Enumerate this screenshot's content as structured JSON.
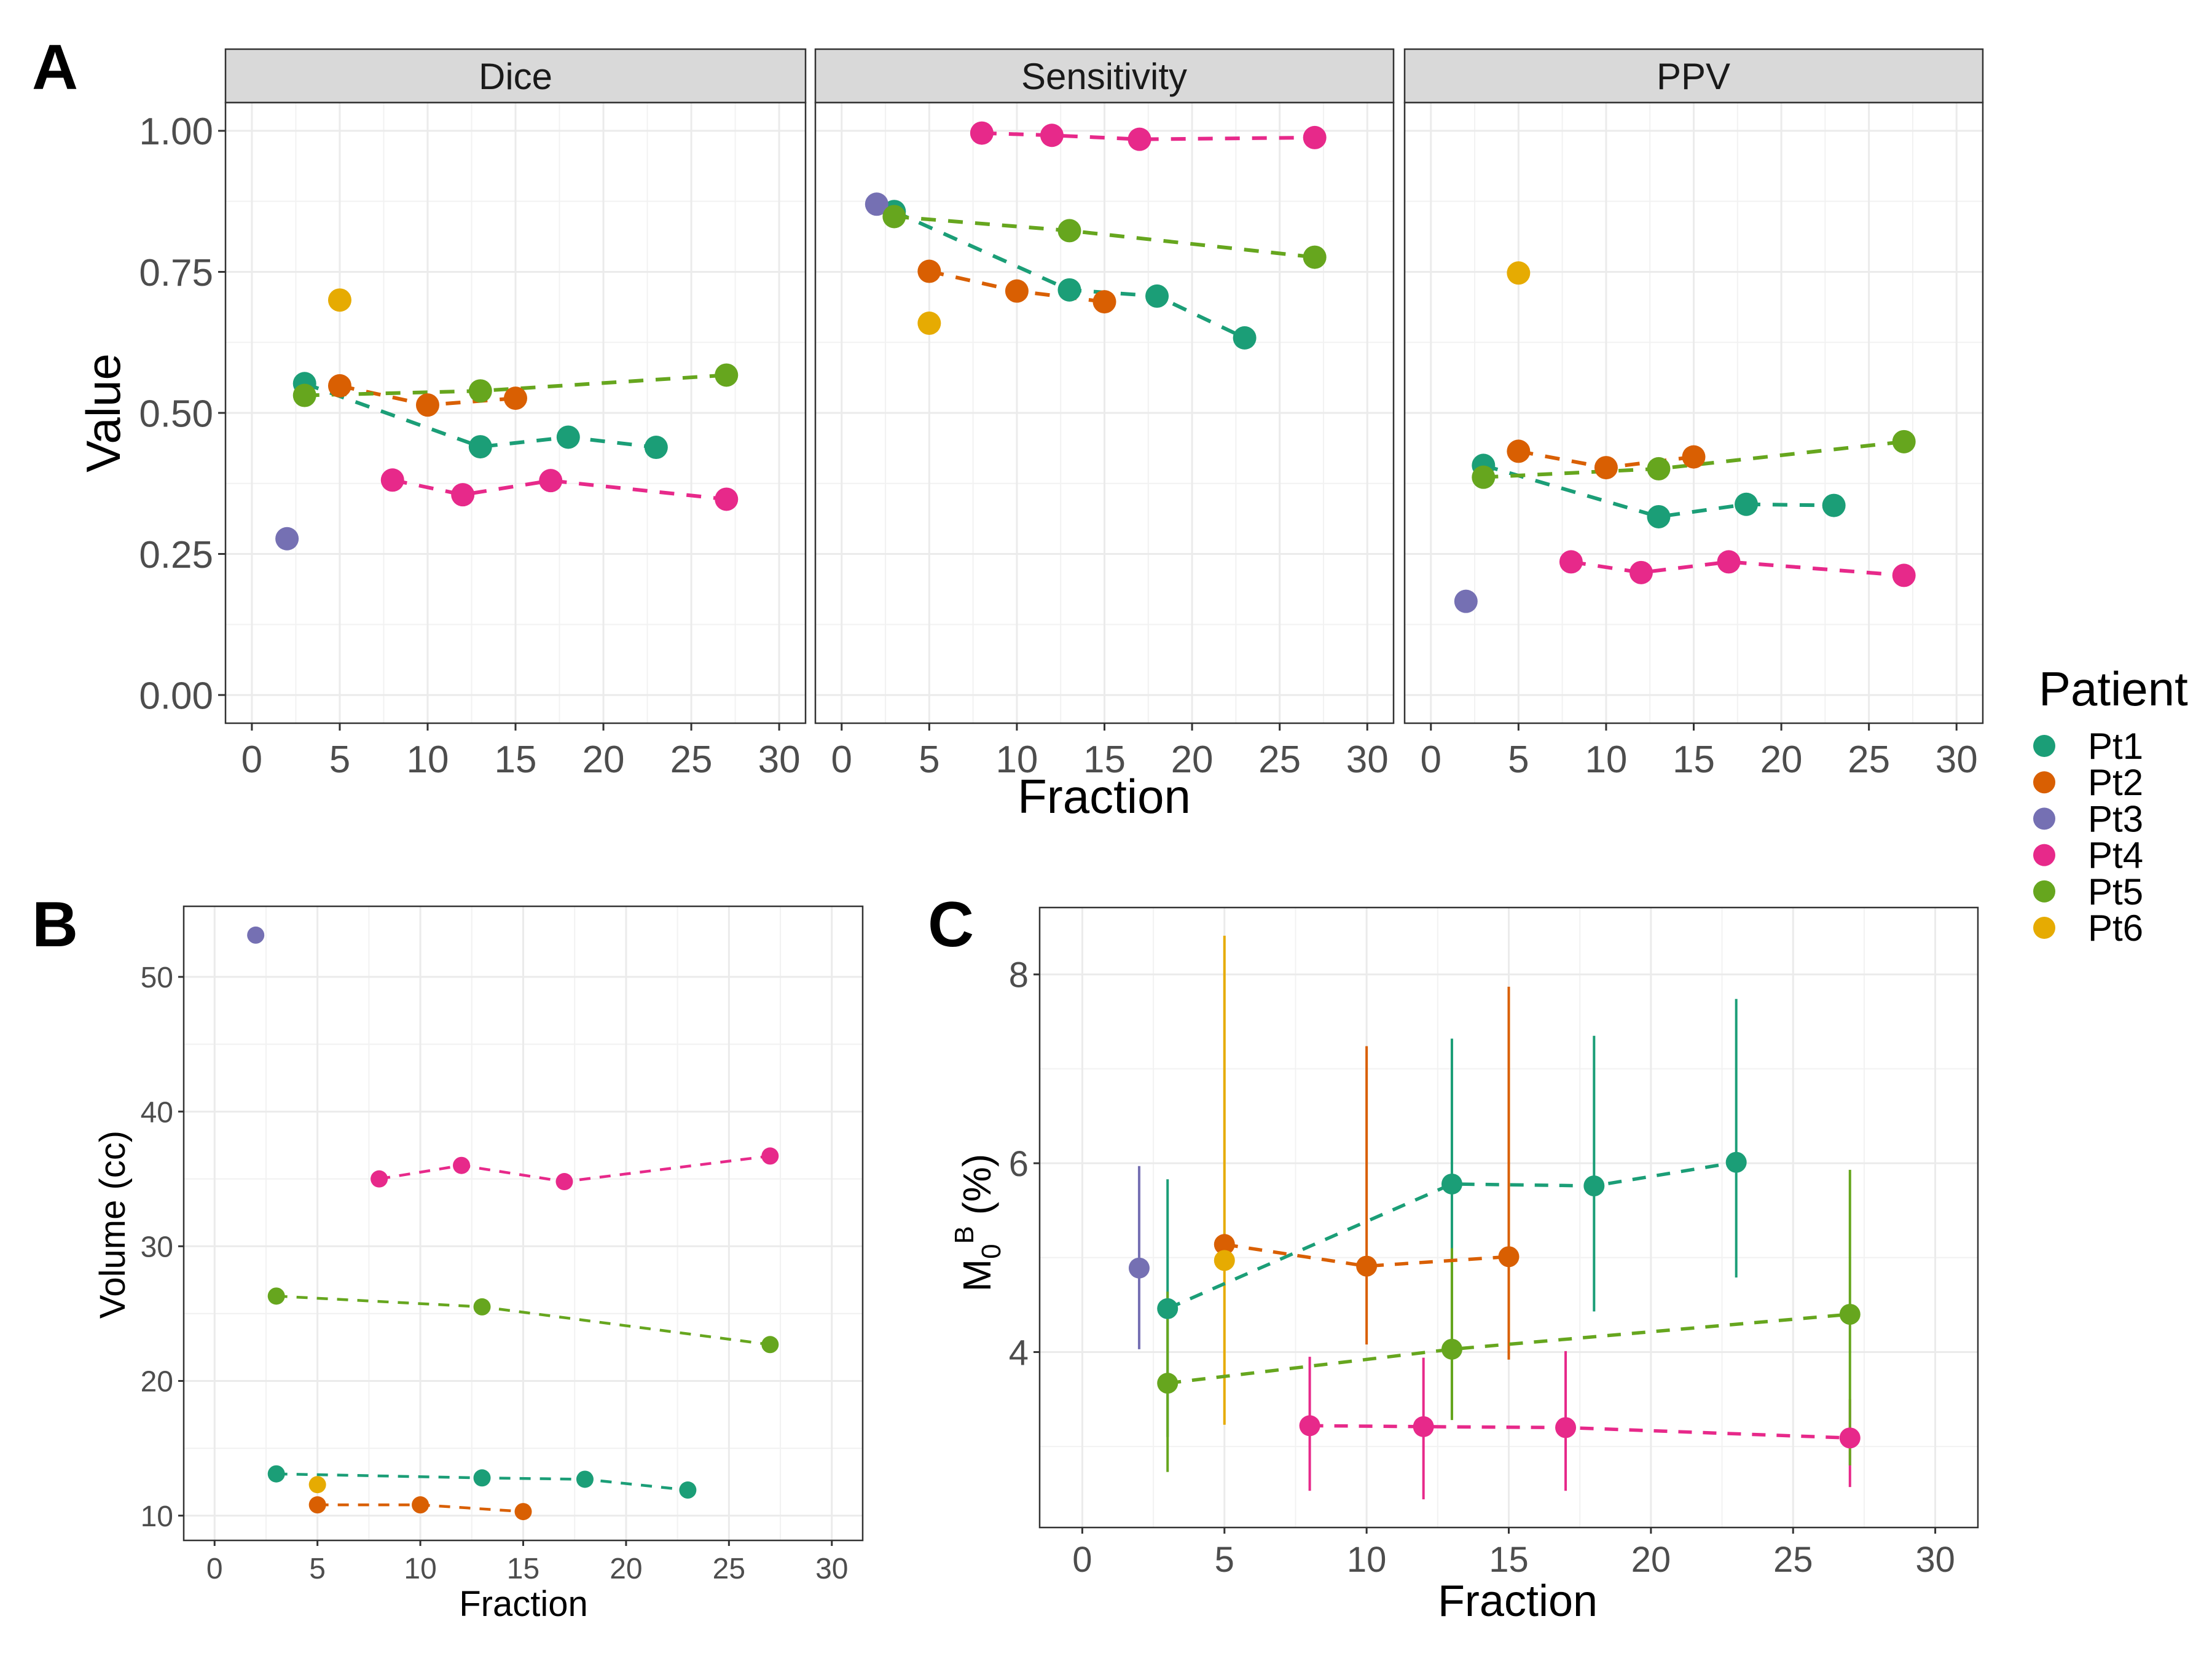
{
  "figure": {
    "panel_labels": [
      "A",
      "B",
      "C"
    ],
    "legend": {
      "title": "Patient",
      "entries": [
        {
          "name": "Pt1",
          "color": "#1B9E77"
        },
        {
          "name": "Pt2",
          "color": "#D95F02"
        },
        {
          "name": "Pt3",
          "color": "#7570B3"
        },
        {
          "name": "Pt4",
          "color": "#E7298A"
        },
        {
          "name": "Pt5",
          "color": "#66A61E"
        },
        {
          "name": "Pt6",
          "color": "#E6AB02"
        }
      ],
      "position": "right"
    }
  },
  "chart_data": [
    {
      "id": "A",
      "type": "scatter",
      "line_style": "dashed lines connecting points per patient",
      "xlabel": "Fraction",
      "ylabel": "Value",
      "xlim": [
        0,
        30
      ],
      "ylim": [
        0,
        1
      ],
      "x_ticks": [
        "0",
        "5",
        "10",
        "15",
        "20",
        "25",
        "30"
      ],
      "y_ticks": [
        "0.00",
        "0.25",
        "0.50",
        "0.75",
        "1.00"
      ],
      "x_tick_values": [
        0,
        5,
        10,
        15,
        20,
        25,
        30
      ],
      "y_tick_values": [
        0,
        0.25,
        0.5,
        0.75,
        1.0
      ],
      "grid": true,
      "facets": [
        {
          "title": "Dice",
          "series": [
            {
              "name": "Pt1",
              "x": [
                3,
                13,
                18,
                23
              ],
              "y": [
                0.552,
                0.44,
                0.457,
                0.439
              ]
            },
            {
              "name": "Pt2",
              "x": [
                5,
                10,
                15
              ],
              "y": [
                0.548,
                0.514,
                0.526
              ]
            },
            {
              "name": "Pt3",
              "x": [
                2
              ],
              "y": [
                0.277
              ]
            },
            {
              "name": "Pt4",
              "x": [
                8,
                12,
                17,
                27
              ],
              "y": [
                0.381,
                0.355,
                0.38,
                0.347
              ]
            },
            {
              "name": "Pt5",
              "x": [
                3,
                13,
                27
              ],
              "y": [
                0.531,
                0.539,
                0.567
              ]
            },
            {
              "name": "Pt6",
              "x": [
                5
              ],
              "y": [
                0.7
              ]
            }
          ]
        },
        {
          "title": "Sensitivity",
          "series": [
            {
              "name": "Pt1",
              "x": [
                3,
                13,
                18,
                23
              ],
              "y": [
                0.857,
                0.718,
                0.707,
                0.633
              ]
            },
            {
              "name": "Pt2",
              "x": [
                5,
                10,
                15
              ],
              "y": [
                0.751,
                0.716,
                0.697
              ]
            },
            {
              "name": "Pt3",
              "x": [
                2
              ],
              "y": [
                0.87
              ]
            },
            {
              "name": "Pt4",
              "x": [
                8,
                12,
                17,
                27
              ],
              "y": [
                0.996,
                0.992,
                0.985,
                0.988
              ]
            },
            {
              "name": "Pt5",
              "x": [
                3,
                13,
                27
              ],
              "y": [
                0.848,
                0.823,
                0.776
              ]
            },
            {
              "name": "Pt6",
              "x": [
                5
              ],
              "y": [
                0.659
              ]
            }
          ]
        },
        {
          "title": "PPV",
          "series": [
            {
              "name": "Pt1",
              "x": [
                3,
                13,
                18,
                23
              ],
              "y": [
                0.407,
                0.316,
                0.338,
                0.336
              ]
            },
            {
              "name": "Pt2",
              "x": [
                5,
                10,
                15
              ],
              "y": [
                0.432,
                0.403,
                0.422
              ]
            },
            {
              "name": "Pt3",
              "x": [
                2
              ],
              "y": [
                0.166
              ]
            },
            {
              "name": "Pt4",
              "x": [
                8,
                12,
                17,
                27
              ],
              "y": [
                0.236,
                0.217,
                0.236,
                0.212
              ]
            },
            {
              "name": "Pt5",
              "x": [
                3,
                13,
                27
              ],
              "y": [
                0.386,
                0.401,
                0.449
              ]
            },
            {
              "name": "Pt6",
              "x": [
                5
              ],
              "y": [
                0.748
              ]
            }
          ]
        }
      ]
    },
    {
      "id": "B",
      "type": "scatter",
      "line_style": "dashed lines connecting points per patient",
      "xlabel": "Fraction",
      "ylabel": "Volume (cc)",
      "xlim": [
        0,
        30
      ],
      "ylim": [
        10.3,
        53.1
      ],
      "x_ticks": [
        "0",
        "5",
        "10",
        "15",
        "20",
        "25",
        "30"
      ],
      "y_ticks": [
        "10",
        "20",
        "30",
        "40",
        "50"
      ],
      "x_tick_values": [
        0,
        5,
        10,
        15,
        20,
        25,
        30
      ],
      "y_tick_values": [
        10,
        20,
        30,
        40,
        50
      ],
      "grid": true,
      "series": [
        {
          "name": "Pt1",
          "x": [
            3,
            13,
            18,
            23
          ],
          "y": [
            13.1,
            12.8,
            12.7,
            11.9
          ]
        },
        {
          "name": "Pt2",
          "x": [
            5,
            10,
            15
          ],
          "y": [
            10.8,
            10.8,
            10.3
          ]
        },
        {
          "name": "Pt3",
          "x": [
            2
          ],
          "y": [
            53.1
          ]
        },
        {
          "name": "Pt4",
          "x": [
            8,
            12,
            17,
            27
          ],
          "y": [
            35.0,
            36.0,
            34.8,
            36.7
          ]
        },
        {
          "name": "Pt5",
          "x": [
            3,
            13,
            27
          ],
          "y": [
            26.3,
            25.5,
            22.7
          ]
        },
        {
          "name": "Pt6",
          "x": [
            5
          ],
          "y": [
            12.3
          ]
        }
      ]
    },
    {
      "id": "C",
      "type": "scatter",
      "line_style": "dashed lines connecting points per patient, vertical error bars",
      "xlabel": "Fraction",
      "ylabel": "M0B (%)",
      "ylabel_parts": {
        "base": "M",
        "sub": "0",
        "sup": "B",
        "rest": " (%)"
      },
      "xlim": [
        0,
        30
      ],
      "ylim": [
        2.44,
        8.41
      ],
      "x_ticks": [
        "0",
        "5",
        "10",
        "15",
        "20",
        "25",
        "30"
      ],
      "y_ticks": [
        "4",
        "6",
        "8"
      ],
      "x_tick_values": [
        0,
        5,
        10,
        15,
        20,
        25,
        30
      ],
      "y_tick_values": [
        4,
        6,
        8
      ],
      "grid": true,
      "series": [
        {
          "name": "Pt1",
          "x": [
            3,
            13,
            18,
            23
          ],
          "y": [
            4.46,
            5.78,
            5.76,
            6.01
          ],
          "ymin": [
            3.1,
            3.3,
            4.43,
            4.79
          ],
          "ymax": [
            5.83,
            7.32,
            7.35,
            7.74
          ]
        },
        {
          "name": "Pt2",
          "x": [
            5,
            10,
            15
          ],
          "y": [
            5.14,
            4.91,
            5.01
          ],
          "ymin": [
            null,
            4.08,
            3.92
          ],
          "ymax": [
            null,
            7.24,
            7.87
          ]
        },
        {
          "name": "Pt3",
          "x": [
            2
          ],
          "y": [
            4.89
          ],
          "ymin": [
            4.03
          ],
          "ymax": [
            5.97
          ]
        },
        {
          "name": "Pt4",
          "x": [
            8,
            12,
            17,
            27
          ],
          "y": [
            3.22,
            3.21,
            3.2,
            3.09
          ],
          "ymin": [
            2.53,
            2.44,
            2.53,
            2.57
          ],
          "ymax": [
            3.95,
            3.94,
            4.01,
            3.5
          ]
        },
        {
          "name": "Pt5",
          "x": [
            3,
            13,
            27
          ],
          "y": [
            3.67,
            4.03,
            4.4
          ],
          "ymin": [
            2.73,
            3.28,
            2.8
          ],
          "ymax": [
            4.64,
            5.1,
            5.93
          ]
        },
        {
          "name": "Pt6",
          "x": [
            5
          ],
          "y": [
            4.97
          ],
          "ymin": [
            3.23
          ],
          "ymax": [
            8.41
          ]
        }
      ]
    }
  ]
}
